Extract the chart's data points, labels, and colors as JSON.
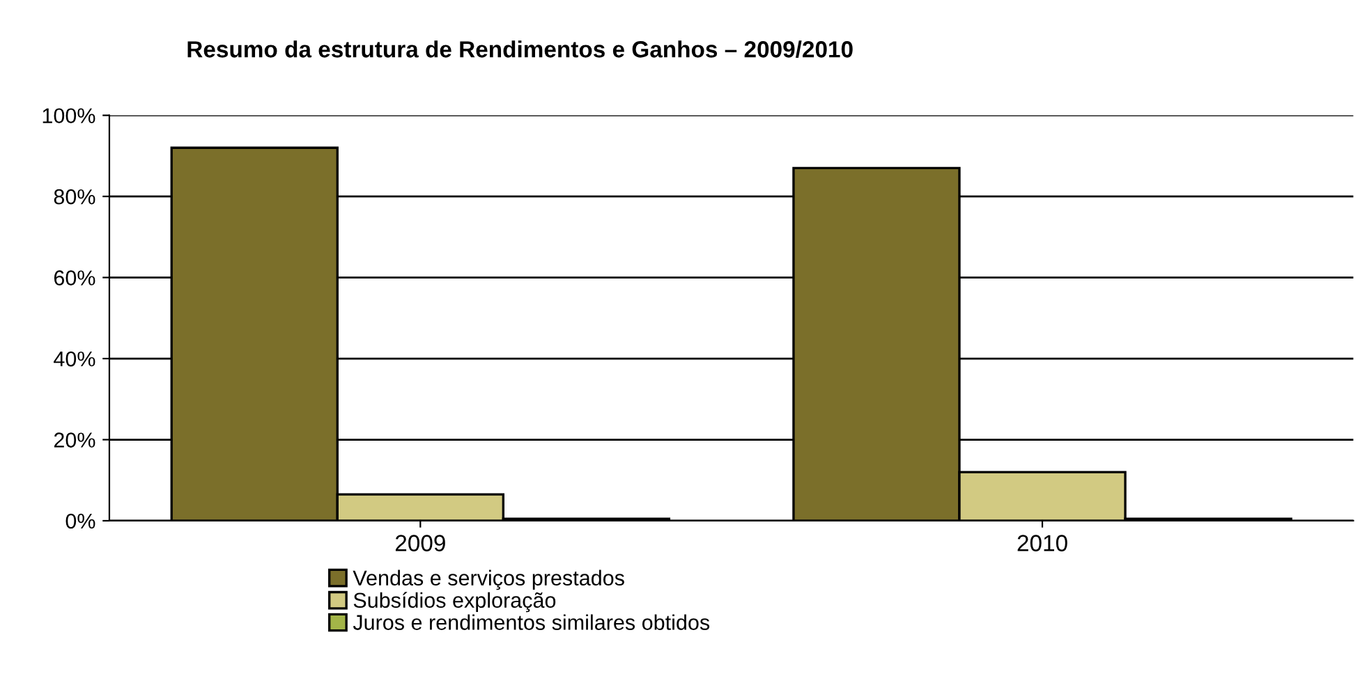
{
  "chart_data": {
    "type": "bar",
    "title": "Resumo da estrutura de Rendimentos e Ganhos – 2009/2010",
    "categories": [
      "2009",
      "2010"
    ],
    "series": [
      {
        "name": "Vendas e serviços prestados",
        "color": "#7b6f2a",
        "values": [
          92,
          87
        ]
      },
      {
        "name": "Subsídios exploração",
        "color": "#d2ca82",
        "values": [
          6.5,
          12
        ]
      },
      {
        "name": "Juros e rendimentos similares obtidos",
        "color": "#a3b548",
        "values": [
          0.5,
          0.5
        ]
      }
    ],
    "ylim": [
      0,
      100
    ],
    "yticks": [
      {
        "value": 0,
        "label": "0%"
      },
      {
        "value": 20,
        "label": "20%"
      },
      {
        "value": 40,
        "label": "40%"
      },
      {
        "value": 60,
        "label": "60%"
      },
      {
        "value": 80,
        "label": "80%"
      },
      {
        "value": 100,
        "label": "100%"
      }
    ],
    "grid": "y",
    "legend": "bottom"
  }
}
